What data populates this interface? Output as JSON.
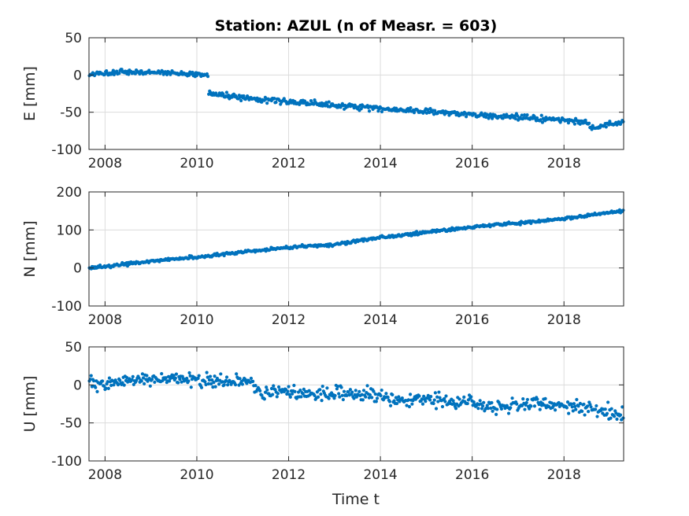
{
  "chart_data": {
    "title": "Station: AZUL (n of Measr. = 603)",
    "xlabel": "Time t",
    "marker_color": "#0072bd",
    "grid": true,
    "xlim": [
      2007.65,
      2019.3
    ],
    "xticks": [
      2008,
      2010,
      2012,
      2014,
      2016,
      2018
    ],
    "panels": [
      {
        "name": "E",
        "type": "scatter",
        "ylabel": "E [mm]",
        "ylim": [
          -100,
          50
        ],
        "yticks": [
          -100,
          -50,
          0,
          50
        ],
        "segments": [
          {
            "start": 2007.65,
            "end": 2010.25,
            "knots": [
              [
                2007.65,
                1
              ],
              [
                2008.3,
                3
              ],
              [
                2008.7,
                4
              ],
              [
                2009.2,
                3
              ],
              [
                2010.25,
                0
              ]
            ],
            "count": 140,
            "noise": 1.8
          },
          {
            "start": 2010.25,
            "end": 2019.3,
            "knots": [
              [
                2010.25,
                -25
              ],
              [
                2011.0,
                -30
              ],
              [
                2012.0,
                -36
              ],
              [
                2013.0,
                -41
              ],
              [
                2014.0,
                -45
              ],
              [
                2015.0,
                -49
              ],
              [
                2016.0,
                -53
              ],
              [
                2017.0,
                -57
              ],
              [
                2018.0,
                -61
              ],
              [
                2018.5,
                -63
              ],
              [
                2018.6,
                -71
              ],
              [
                2019.3,
                -64
              ]
            ],
            "count": 463,
            "noise": 1.8
          }
        ]
      },
      {
        "name": "N",
        "type": "scatter",
        "ylabel": "N [mm]",
        "ylim": [
          -100,
          200
        ],
        "yticks": [
          -100,
          0,
          100,
          200
        ],
        "segments": [
          {
            "start": 2007.65,
            "end": 2019.3,
            "knots": [
              [
                2007.65,
                0
              ],
              [
                2008.0,
                3
              ],
              [
                2009.0,
                18
              ],
              [
                2010.0,
                28
              ],
              [
                2011.0,
                42
              ],
              [
                2012.0,
                54
              ],
              [
                2013.0,
                62
              ],
              [
                2014.0,
                80
              ],
              [
                2015.0,
                94
              ],
              [
                2016.0,
                108
              ],
              [
                2017.0,
                118
              ],
              [
                2018.0,
                129
              ],
              [
                2019.3,
                151
              ]
            ],
            "count": 603,
            "noise": 2.0
          }
        ]
      },
      {
        "name": "U",
        "type": "scatter",
        "ylabel": "U [mm]",
        "ylim": [
          -100,
          50
        ],
        "yticks": [
          -100,
          -50,
          0,
          50
        ],
        "segments": [
          {
            "start": 2007.65,
            "end": 2011.25,
            "knots": [
              [
                2007.65,
                2
              ],
              [
                2008.5,
                5
              ],
              [
                2009.5,
                8
              ],
              [
                2010.5,
                5
              ],
              [
                2011.25,
                6
              ]
            ],
            "count": 190,
            "noise": 4.0
          },
          {
            "start": 2011.25,
            "end": 2019.3,
            "knots": [
              [
                2011.25,
                -7
              ],
              [
                2012.0,
                -10
              ],
              [
                2013.0,
                -12
              ],
              [
                2014.0,
                -15
              ],
              [
                2014.3,
                -21
              ],
              [
                2015.0,
                -20
              ],
              [
                2016.0,
                -24
              ],
              [
                2016.3,
                -30
              ],
              [
                2017.0,
                -25
              ],
              [
                2018.0,
                -27
              ],
              [
                2018.5,
                -30
              ],
              [
                2019.3,
                -42
              ]
            ],
            "count": 413,
            "noise": 4.5
          }
        ]
      }
    ]
  }
}
